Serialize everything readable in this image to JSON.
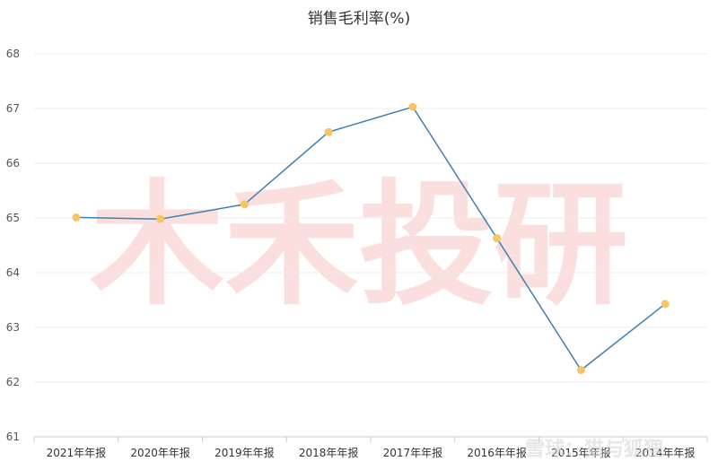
{
  "chart_data": {
    "type": "line",
    "title": "销售毛利率(%)",
    "categories": [
      "2021年年报",
      "2020年年报",
      "2019年年报",
      "2018年年报",
      "2017年年报",
      "2016年年报",
      "2015年年报",
      "2014年年报"
    ],
    "series": [
      {
        "values": [
          65.01,
          64.98,
          65.25,
          66.57,
          67.03,
          64.63,
          62.22,
          63.43
        ]
      }
    ],
    "ylim": [
      61,
      68
    ],
    "yticks": [
      "68",
      "67",
      "66",
      "65",
      "64",
      "63",
      "62",
      "61"
    ],
    "grid": true,
    "colors": {
      "line": "#3d7fb5",
      "marker": "#f5c663"
    }
  },
  "watermark": "木禾投研",
  "source_mark": "雪球：猫与狐狸"
}
